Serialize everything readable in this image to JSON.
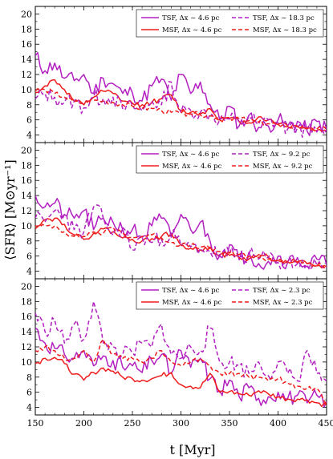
{
  "ylabel": "⟨SFR⟩ [M⊙yr⁻¹]",
  "xlabel": "t [Myr]",
  "colors": {
    "tsf": "#b31fc1",
    "msf": "#ef1c1c"
  },
  "chart_data": [
    {
      "type": "line",
      "xlim": [
        150,
        450
      ],
      "ylim": [
        3,
        21
      ],
      "xticks": [
        150,
        200,
        250,
        300,
        350,
        400,
        450
      ],
      "yticks": [
        4,
        6,
        8,
        10,
        12,
        14,
        16,
        18,
        20
      ],
      "legend_position": "top-right",
      "series": [
        {
          "name": "TSF, Δx ∼ 4.6 pc",
          "style": "solid",
          "color": "#b31fc1",
          "seed": 11,
          "x": [
            150,
            160,
            170,
            180,
            190,
            200,
            210,
            220,
            230,
            240,
            250,
            260,
            270,
            280,
            290,
            300,
            310,
            320,
            330,
            340,
            350,
            360,
            370,
            380,
            390,
            400,
            410,
            420,
            430,
            440,
            450
          ],
          "y": [
            14.5,
            12.5,
            13.5,
            11.5,
            11.2,
            12,
            9.5,
            11.5,
            10.8,
            9.5,
            9.6,
            8.5,
            10.5,
            11.4,
            8.6,
            12,
            9.5,
            11,
            8,
            6,
            7.8,
            5.2,
            6.6,
            5,
            5.2,
            6,
            5.2,
            5.8,
            4.5,
            5.8,
            4.8
          ]
        },
        {
          "name": "MSF, Δx ∼ 4.6 pc",
          "style": "solid",
          "color": "#ef1c1c",
          "seed": 12,
          "x": [
            150,
            160,
            170,
            180,
            190,
            200,
            210,
            220,
            230,
            240,
            250,
            260,
            270,
            280,
            290,
            300,
            310,
            320,
            330,
            340,
            350,
            360,
            370,
            380,
            390,
            400,
            410,
            420,
            430,
            440,
            450
          ],
          "y": [
            9.8,
            10.5,
            11.3,
            10,
            8.5,
            8,
            9,
            9.8,
            9.5,
            8.5,
            8.2,
            8,
            8.3,
            8.8,
            9.3,
            7.2,
            7,
            6.8,
            7.5,
            6,
            6.2,
            5.8,
            5.6,
            6.4,
            6,
            5.4,
            5.1,
            5.2,
            5,
            4.6,
            4.6
          ]
        },
        {
          "name": "TSF, Δx ∼ 18.3 pc",
          "style": "dashed",
          "color": "#b31fc1",
          "seed": 13,
          "x": [
            150,
            160,
            170,
            180,
            190,
            200,
            210,
            220,
            230,
            240,
            250,
            260,
            270,
            280,
            290,
            300,
            310,
            320,
            330,
            340,
            350,
            360,
            370,
            380,
            390,
            400,
            410,
            420,
            430,
            440,
            450
          ],
          "y": [
            8.8,
            9.5,
            9,
            8.3,
            8.5,
            7.6,
            9,
            8.8,
            9,
            7.5,
            7.8,
            7.2,
            8.5,
            8,
            11,
            7,
            7.3,
            7,
            6.8,
            6,
            6.1,
            5.6,
            6.4,
            5.4,
            6,
            5.6,
            4.8,
            5,
            4.6,
            4.4,
            4.7
          ]
        },
        {
          "name": "MSF, Δx ∼ 18.3 pc",
          "style": "dashed",
          "color": "#ef1c1c",
          "seed": 14,
          "x": [
            150,
            160,
            170,
            180,
            190,
            200,
            210,
            220,
            230,
            240,
            250,
            260,
            270,
            280,
            290,
            300,
            310,
            320,
            330,
            340,
            350,
            360,
            370,
            380,
            390,
            400,
            410,
            420,
            430,
            440,
            450
          ],
          "y": [
            9.6,
            10,
            9.5,
            9,
            8.4,
            8.2,
            8.6,
            8.5,
            8.3,
            8,
            7.8,
            7.5,
            7.5,
            7.2,
            7,
            6.9,
            6.8,
            6.7,
            6.5,
            6.4,
            6.3,
            6.2,
            5.9,
            5.7,
            5.5,
            5.4,
            5.2,
            5.1,
            4.9,
            4.8,
            4.7
          ]
        }
      ]
    },
    {
      "type": "line",
      "xlim": [
        150,
        450
      ],
      "ylim": [
        3,
        21
      ],
      "xticks": [
        150,
        200,
        250,
        300,
        350,
        400,
        450
      ],
      "yticks": [
        4,
        6,
        8,
        10,
        12,
        14,
        16,
        18,
        20
      ],
      "legend_position": "top-right",
      "series": [
        {
          "name": "TSF, Δx ∼ 4.6 pc",
          "style": "solid",
          "color": "#b31fc1",
          "seed": 21,
          "x": [
            150,
            160,
            170,
            180,
            190,
            200,
            210,
            220,
            230,
            240,
            250,
            260,
            270,
            280,
            290,
            300,
            310,
            320,
            330,
            340,
            350,
            360,
            370,
            380,
            390,
            400,
            410,
            420,
            430,
            440,
            450
          ],
          "y": [
            14,
            12.5,
            13,
            11.5,
            11,
            12,
            9.5,
            11,
            10.5,
            9.5,
            9.5,
            8.5,
            10,
            11,
            8.5,
            11.5,
            9.5,
            10.5,
            8,
            6,
            7.5,
            5.5,
            6.5,
            5,
            5.3,
            6,
            5.2,
            5.8,
            4.6,
            5.6,
            4.8
          ]
        },
        {
          "name": "MSF, Δx ∼ 4.6 pc",
          "style": "solid",
          "color": "#ef1c1c",
          "seed": 22,
          "x": [
            150,
            160,
            170,
            180,
            190,
            200,
            210,
            220,
            230,
            240,
            250,
            260,
            270,
            280,
            290,
            300,
            310,
            320,
            330,
            340,
            350,
            360,
            370,
            380,
            390,
            400,
            410,
            420,
            430,
            440,
            450
          ],
          "y": [
            10,
            10.8,
            11,
            10.2,
            8.8,
            8.2,
            9,
            9.6,
            9.2,
            8.4,
            8.2,
            8,
            8.3,
            8.6,
            9,
            7.4,
            7,
            6.8,
            7.2,
            6.1,
            6.1,
            5.8,
            5.6,
            6.2,
            5.9,
            5.4,
            5.2,
            5.2,
            5,
            4.7,
            4.6
          ]
        },
        {
          "name": "TSF, Δx ∼ 9.2 pc",
          "style": "dashed",
          "color": "#b31fc1",
          "seed": 23,
          "x": [
            150,
            160,
            170,
            180,
            190,
            200,
            210,
            220,
            230,
            240,
            250,
            260,
            270,
            280,
            290,
            300,
            310,
            320,
            330,
            340,
            350,
            360,
            370,
            380,
            390,
            400,
            410,
            420,
            430,
            440,
            450
          ],
          "y": [
            11,
            10.5,
            12,
            11.5,
            9.5,
            9.2,
            12.5,
            11,
            8.8,
            9.8,
            6.8,
            8.5,
            7.8,
            8.2,
            9,
            7.4,
            7.2,
            7,
            6.6,
            6.2,
            6.4,
            5.8,
            6.2,
            5.6,
            5.8,
            5.2,
            5.2,
            5,
            4.8,
            4.8,
            4.6
          ]
        },
        {
          "name": "MSF, Δx ∼ 9.2 pc",
          "style": "dashed",
          "color": "#ef1c1c",
          "seed": 24,
          "x": [
            150,
            160,
            170,
            180,
            190,
            200,
            210,
            220,
            230,
            240,
            250,
            260,
            270,
            280,
            290,
            300,
            310,
            320,
            330,
            340,
            350,
            360,
            370,
            380,
            390,
            400,
            410,
            420,
            430,
            440,
            450
          ],
          "y": [
            9.6,
            10,
            10,
            9.2,
            8.6,
            8.6,
            9.2,
            9,
            9.8,
            9,
            8.4,
            8.6,
            8.8,
            8.4,
            7.8,
            7.5,
            7.4,
            7.2,
            6.9,
            6.6,
            6.4,
            6.2,
            6,
            5.8,
            5.6,
            5.4,
            5.3,
            5.1,
            5,
            4.8,
            4.7
          ]
        }
      ]
    },
    {
      "type": "line",
      "xlim": [
        150,
        450
      ],
      "ylim": [
        3,
        21
      ],
      "xticks": [
        150,
        200,
        250,
        300,
        350,
        400,
        450
      ],
      "yticks": [
        4,
        6,
        8,
        10,
        12,
        14,
        16,
        18,
        20
      ],
      "legend_position": "top-right",
      "series": [
        {
          "name": "TSF, Δx ∼ 4.6 pc",
          "style": "solid",
          "color": "#b31fc1",
          "seed": 31,
          "x": [
            150,
            160,
            170,
            180,
            190,
            200,
            210,
            220,
            230,
            240,
            250,
            260,
            270,
            280,
            290,
            300,
            310,
            320,
            330,
            340,
            350,
            360,
            370,
            380,
            390,
            400,
            410,
            420,
            430,
            440,
            450
          ],
          "y": [
            14.5,
            12.5,
            11.8,
            11,
            10.5,
            11.5,
            9.5,
            10.8,
            10.2,
            9.3,
            9.5,
            8.6,
            10.2,
            11,
            8.5,
            11.5,
            9.3,
            10.5,
            7.8,
            6.2,
            7.6,
            5.4,
            6.6,
            5.2,
            5.4,
            6,
            5.2,
            5.6,
            4.6,
            5.6,
            4.8
          ]
        },
        {
          "name": "MSF, Δx ∼ 4.6 pc",
          "style": "solid",
          "color": "#ef1c1c",
          "seed": 32,
          "x": [
            150,
            160,
            170,
            180,
            190,
            200,
            210,
            220,
            230,
            240,
            250,
            260,
            270,
            280,
            290,
            300,
            310,
            320,
            330,
            340,
            350,
            360,
            370,
            380,
            390,
            400,
            410,
            420,
            430,
            440,
            450
          ],
          "y": [
            9.8,
            10.5,
            10.6,
            9.8,
            8.4,
            7.6,
            8.6,
            9.2,
            8.8,
            8,
            7.8,
            7.6,
            7.8,
            8.2,
            8.6,
            7,
            6.8,
            6.6,
            8.5,
            6,
            6.1,
            5.8,
            5.6,
            6.2,
            5.8,
            5.4,
            5.1,
            5.1,
            5,
            4.6,
            4.3
          ]
        },
        {
          "name": "TSF, Δx ∼ 2.3 pc",
          "style": "dashed",
          "color": "#b31fc1",
          "seed": 33,
          "x": [
            150,
            160,
            170,
            180,
            190,
            200,
            210,
            220,
            230,
            240,
            250,
            260,
            270,
            280,
            290,
            300,
            310,
            320,
            330,
            340,
            350,
            360,
            370,
            380,
            390,
            400,
            410,
            420,
            430,
            440,
            450
          ],
          "y": [
            16.5,
            14,
            15.5,
            12.5,
            15,
            13,
            18,
            12.5,
            12,
            11,
            11.2,
            12.5,
            12,
            15,
            11,
            10.5,
            12,
            11.5,
            14.5,
            10,
            10,
            9.5,
            8.5,
            10,
            8.2,
            10,
            8.5,
            7.5,
            11.5,
            8.5,
            7.5
          ]
        },
        {
          "name": "MSF, Δx ∼ 2.3 pc",
          "style": "dashed",
          "color": "#ef1c1c",
          "seed": 34,
          "x": [
            150,
            160,
            170,
            180,
            190,
            200,
            210,
            220,
            230,
            240,
            250,
            260,
            270,
            280,
            290,
            300,
            310,
            320,
            330,
            340,
            350,
            360,
            370,
            380,
            390,
            400,
            410,
            420,
            430,
            440,
            450
          ],
          "y": [
            11.5,
            12,
            11.5,
            10.5,
            10.5,
            11.5,
            10,
            13,
            11,
            10.5,
            10.5,
            10,
            10.5,
            11.5,
            10,
            9.5,
            10,
            10.5,
            9.5,
            8.5,
            8.5,
            8.5,
            8,
            8,
            7.5,
            7.8,
            7.2,
            6.8,
            6.5,
            6.5,
            4.5
          ]
        }
      ]
    }
  ]
}
